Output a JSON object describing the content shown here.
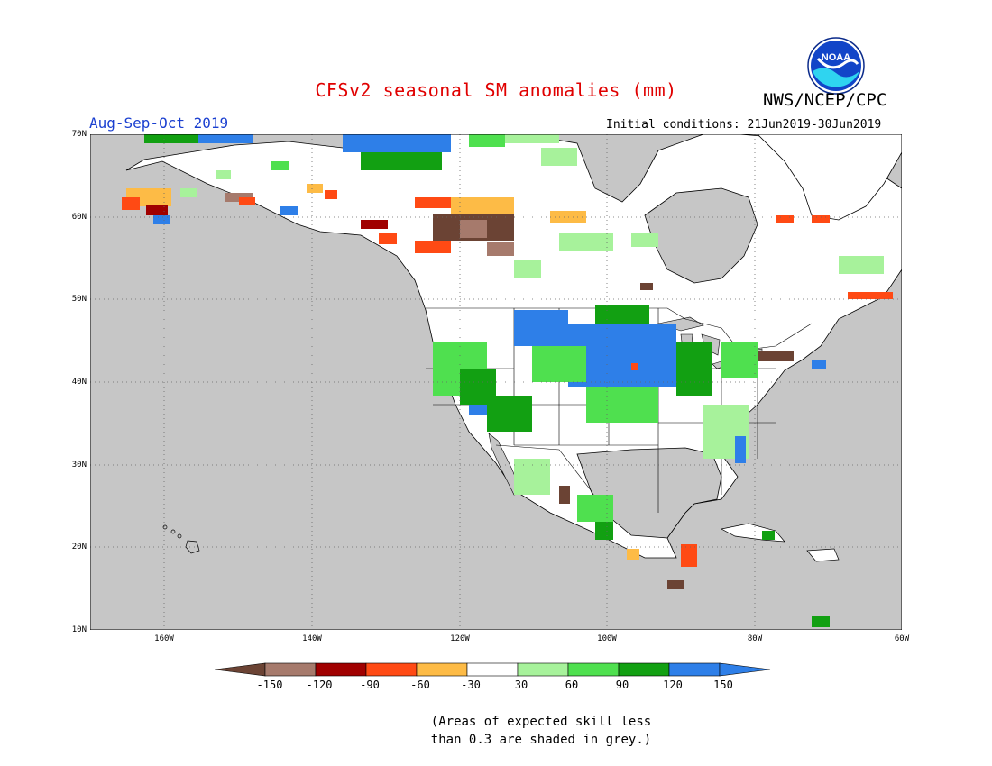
{
  "title": "CFSv2 seasonal SM anomalies (mm)",
  "organization": "NWS/NCEP/CPC",
  "logo_text": "NOAA",
  "period": "Aug-Sep-Oct 2019",
  "initial_conditions": "Initial conditions: 21Jun2019-30Jun2019",
  "lat_labels": [
    "70N",
    "60N",
    "50N",
    "40N",
    "30N",
    "20N",
    "10N"
  ],
  "lon_labels": [
    "160W",
    "140W",
    "120W",
    "100W",
    "80W",
    "60W"
  ],
  "colorbar": {
    "labels": [
      "-150",
      "-120",
      "-90",
      "-60",
      "-30",
      "30",
      "60",
      "90",
      "120",
      "150"
    ],
    "colors": [
      "#6b4334",
      "#a67a6c",
      "#a00000",
      "#ff4a14",
      "#fdbb46",
      "#ffffff",
      "#a7f29b",
      "#4fe04f",
      "#12a012",
      "#2e7fe8",
      "#2e7fe8"
    ]
  },
  "colors": {
    "ocean": "#c6c6c6",
    "land": "#ffffff",
    "title": "#e00000",
    "period": "#1a3fd0"
  },
  "note_lines": [
    "(Areas of expected skill less",
    "than 0.3 are shaded in grey.)"
  ]
}
